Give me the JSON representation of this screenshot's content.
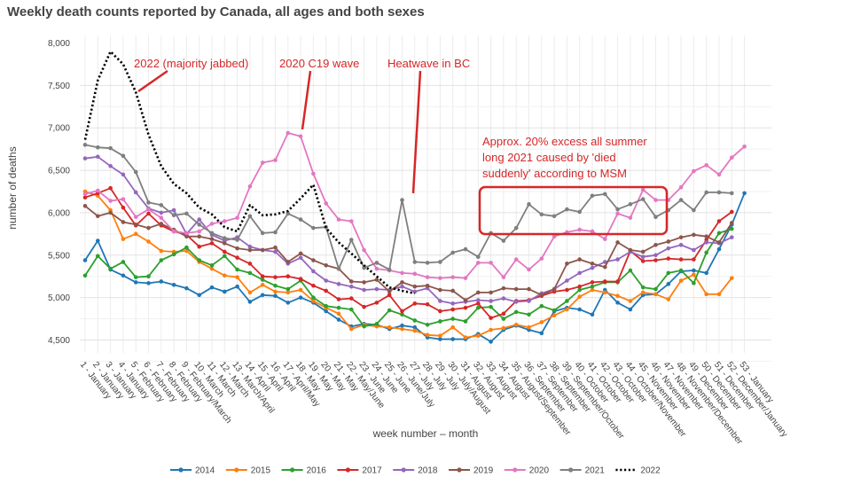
{
  "title": "Weekly death counts reported by Canada, all ages and both sexes",
  "chart_data": {
    "type": "line",
    "title": "Weekly death counts reported by Canada, all ages and both sexes",
    "xlabel": "week number – month",
    "ylabel": "number of deaths",
    "ylim": [
      4300,
      8000
    ],
    "yticks": [
      "8,000",
      "7,500",
      "7,000",
      "6,500",
      "6,000",
      "5,500",
      "5,000",
      "4,500"
    ],
    "ytick_values": [
      8000,
      7500,
      7000,
      6500,
      6000,
      5500,
      5000,
      4500
    ],
    "grid": true,
    "legend_position": "bottom",
    "categories": [
      "1 - January",
      "2 - January",
      "3 - January",
      "4 - January",
      "5 - February",
      "6 - February",
      "7 - February",
      "8 - February",
      "9 - February/March",
      "10 - March",
      "11 - March",
      "12 - March",
      "13 - March/April",
      "14 - April",
      "15 - April",
      "16 - April",
      "17 - April/May",
      "18 - May",
      "19 - May",
      "20 - May",
      "21 - May",
      "22 - May/June",
      "23 - June",
      "24 - June",
      "25 - June",
      "26 - June/July",
      "27 - July",
      "28 - July",
      "29 - July",
      "30 - July/August",
      "31 - August",
      "32 - August",
      "33 - August",
      "34 - August",
      "35 - August/September",
      "36 - September",
      "37 - September",
      "38 - September",
      "39 - September/October",
      "40 - October",
      "41 - October",
      "42 - October",
      "43 - October",
      "44 - October/November",
      "45 - November",
      "46 - November",
      "47 - November",
      "48 - November/December",
      "49 - December",
      "50 - December",
      "51 - December",
      "52 - December/January",
      "53 - January"
    ],
    "series": [
      {
        "name": "2014",
        "color": "#1f77b4",
        "dash": false,
        "values": [
          5440,
          5670,
          5330,
          5260,
          5180,
          5170,
          5190,
          5150,
          5110,
          5030,
          5120,
          5070,
          5130,
          4950,
          5030,
          5020,
          4940,
          5000,
          4940,
          4840,
          4740,
          4660,
          4690,
          4680,
          4630,
          4670,
          4650,
          4530,
          4510,
          4510,
          4510,
          4570,
          4480,
          4620,
          4670,
          4620,
          4580,
          4840,
          4880,
          4860,
          4800,
          5090,
          4940,
          4860,
          5030,
          5040,
          5160,
          5310,
          5320,
          5290,
          5570,
          5860,
          6230
        ]
      },
      {
        "name": "2015",
        "color": "#ff7f0e",
        "dash": false,
        "values": [
          6250,
          6200,
          6030,
          5690,
          5750,
          5660,
          5550,
          5540,
          5550,
          5420,
          5340,
          5260,
          5240,
          5060,
          5150,
          5070,
          5060,
          5090,
          4960,
          4880,
          4810,
          4630,
          4680,
          4660,
          4650,
          4630,
          4610,
          4560,
          4550,
          4650,
          4530,
          4550,
          4620,
          4640,
          4680,
          4650,
          4710,
          4790,
          4860,
          5010,
          5090,
          5060,
          5020,
          4960,
          5060,
          5040,
          4980,
          5200,
          5270,
          5040,
          5040,
          5230,
          null
        ]
      },
      {
        "name": "2016",
        "color": "#2ca02c",
        "dash": false,
        "values": [
          5260,
          5490,
          5340,
          5420,
          5240,
          5250,
          5440,
          5510,
          5590,
          5440,
          5380,
          5490,
          5330,
          5290,
          5210,
          5140,
          5100,
          5200,
          5000,
          4900,
          4880,
          4860,
          4660,
          4690,
          4850,
          4800,
          4730,
          4680,
          4720,
          4750,
          4720,
          4880,
          4890,
          4750,
          4830,
          4800,
          4900,
          4850,
          4960,
          5090,
          5130,
          5180,
          5180,
          5320,
          5120,
          5100,
          5290,
          5320,
          5170,
          5530,
          5760,
          5810,
          null
        ]
      },
      {
        "name": "2017",
        "color": "#d62728",
        "dash": false,
        "values": [
          6180,
          6230,
          6290,
          6060,
          5850,
          5990,
          5850,
          5780,
          5740,
          5600,
          5640,
          5540,
          5470,
          5400,
          5250,
          5240,
          5250,
          5220,
          5140,
          5080,
          4980,
          4990,
          4890,
          4940,
          5030,
          4840,
          4930,
          4920,
          4840,
          4860,
          4880,
          4930,
          4760,
          4810,
          4960,
          4970,
          5020,
          5070,
          5090,
          5130,
          5180,
          5190,
          5190,
          5550,
          5430,
          5440,
          5460,
          5450,
          5450,
          5680,
          5900,
          6010,
          null
        ]
      },
      {
        "name": "2018",
        "color": "#9467bd",
        "dash": false,
        "values": [
          6640,
          6660,
          6550,
          6450,
          6240,
          6050,
          6000,
          6030,
          5750,
          5920,
          5740,
          5670,
          5710,
          5600,
          5560,
          5540,
          5400,
          5470,
          5310,
          5200,
          5160,
          5130,
          5090,
          5100,
          5090,
          5130,
          5070,
          5110,
          4960,
          4930,
          4950,
          4970,
          4960,
          4990,
          4950,
          4960,
          5050,
          5100,
          5200,
          5290,
          5350,
          5420,
          5450,
          5540,
          5480,
          5500,
          5580,
          5620,
          5560,
          5650,
          5640,
          5710,
          null
        ]
      },
      {
        "name": "2019",
        "color": "#8c564b",
        "dash": false,
        "values": [
          6080,
          5960,
          6000,
          5890,
          5860,
          5820,
          5870,
          5800,
          5720,
          5720,
          5690,
          5640,
          5580,
          5560,
          5560,
          5590,
          5420,
          5520,
          5440,
          5380,
          5340,
          5190,
          5180,
          5210,
          5070,
          5180,
          5130,
          5140,
          5090,
          5080,
          4970,
          5060,
          5060,
          5110,
          5100,
          5100,
          5030,
          5100,
          5400,
          5450,
          5400,
          5360,
          5650,
          5560,
          5540,
          5620,
          5660,
          5710,
          5740,
          5720,
          5650,
          5880,
          null
        ]
      },
      {
        "name": "2020",
        "color": "#e377c2",
        "dash": false,
        "values": [
          6220,
          6260,
          6140,
          6160,
          5950,
          6040,
          5940,
          5780,
          5760,
          5780,
          5870,
          5900,
          5940,
          6310,
          6590,
          6620,
          6940,
          6900,
          6460,
          6110,
          5920,
          5900,
          5560,
          5340,
          5320,
          5290,
          5280,
          5240,
          5230,
          5240,
          5230,
          5410,
          5410,
          5240,
          5450,
          5330,
          5460,
          5720,
          5770,
          5800,
          5780,
          5690,
          5990,
          5940,
          6270,
          6150,
          6150,
          6300,
          6490,
          6560,
          6450,
          6650,
          6780
        ]
      },
      {
        "name": "2021",
        "color": "#7f7f7f",
        "dash": false,
        "values": [
          6800,
          6770,
          6760,
          6670,
          6480,
          6120,
          6090,
          5970,
          5990,
          5860,
          5760,
          5700,
          5680,
          5960,
          5760,
          5770,
          5990,
          5920,
          5820,
          5830,
          5340,
          5680,
          5350,
          5410,
          5330,
          6150,
          5420,
          5410,
          5420,
          5530,
          5570,
          5480,
          5760,
          5670,
          5820,
          6100,
          5980,
          5960,
          6040,
          6010,
          6200,
          6220,
          6040,
          6100,
          6160,
          5950,
          6030,
          6150,
          6030,
          6240,
          6240,
          6230,
          null
        ]
      },
      {
        "name": "2022",
        "color": "#000000",
        "dash": true,
        "values": [
          6860,
          7560,
          7900,
          7750,
          7420,
          6920,
          6550,
          6340,
          6230,
          6060,
          5980,
          5830,
          5780,
          6090,
          5970,
          5980,
          6020,
          6170,
          6330,
          5820,
          5650,
          5520,
          5380,
          5250,
          5120,
          5080,
          5050,
          null,
          null,
          null,
          null,
          null,
          null,
          null,
          null,
          null,
          null,
          null,
          null,
          null,
          null,
          null,
          null,
          null,
          null,
          null,
          null,
          null,
          null,
          null,
          null,
          null,
          null
        ]
      }
    ],
    "annotations": [
      {
        "text": "2022 (majority jabbed)",
        "points_to": "3 - January, 2022 peak"
      },
      {
        "text": "2020 C19 wave",
        "points_to": "17 - April/May, 2020 peak"
      },
      {
        "text": "Heatwave in BC",
        "points_to": "26 - June/July, 2021 spike"
      },
      {
        "text": "Approx. 20% excess all summer",
        "points_to": "weeks 31-43, 2021"
      },
      {
        "text": "long 2021 caused by 'died",
        "points_to": ""
      },
      {
        "text": "suddenly' according to MSM",
        "points_to": ""
      }
    ]
  }
}
